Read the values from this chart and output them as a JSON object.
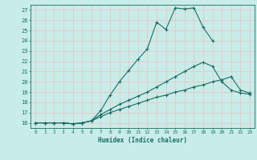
{
  "xlabel": "Humidex (Indice chaleur)",
  "xlim": [
    -0.5,
    23.5
  ],
  "ylim": [
    15.5,
    27.5
  ],
  "xticks": [
    0,
    1,
    2,
    3,
    4,
    5,
    6,
    7,
    8,
    9,
    10,
    11,
    12,
    13,
    14,
    15,
    16,
    17,
    18,
    19,
    20,
    21,
    22,
    23
  ],
  "yticks": [
    16,
    17,
    18,
    19,
    20,
    21,
    22,
    23,
    24,
    25,
    26,
    27
  ],
  "bg_color": "#c8ece8",
  "line_color": "#1a6e64",
  "grid_color": "#e8c8c8",
  "series": [
    {
      "x": [
        0,
        1,
        2,
        3,
        4,
        5,
        6,
        7,
        8,
        9,
        10,
        11,
        12,
        13,
        14,
        15,
        16,
        17,
        18,
        19
      ],
      "y": [
        16,
        16,
        16,
        16,
        15.9,
        16.0,
        16.2,
        17.2,
        18.7,
        20.0,
        21.1,
        22.2,
        23.2,
        25.8,
        25.1,
        27.2,
        27.1,
        27.2,
        25.3,
        24.0
      ]
    },
    {
      "x": [
        0,
        1,
        2,
        3,
        4,
        5,
        6,
        7,
        8,
        9,
        10,
        11,
        12,
        13,
        14,
        15,
        16,
        17,
        18,
        19,
        20,
        21,
        22,
        23
      ],
      "y": [
        16,
        16,
        16,
        16,
        15.9,
        16.0,
        16.2,
        16.8,
        17.3,
        17.8,
        18.2,
        18.6,
        19.0,
        19.5,
        20.0,
        20.5,
        21.0,
        21.5,
        21.9,
        21.5,
        20.0,
        19.2,
        18.9,
        18.8
      ]
    },
    {
      "x": [
        0,
        1,
        2,
        3,
        4,
        5,
        6,
        7,
        8,
        9,
        10,
        11,
        12,
        13,
        14,
        15,
        16,
        17,
        18,
        19,
        20,
        21,
        22,
        23
      ],
      "y": [
        16,
        16,
        16,
        16,
        15.9,
        16.0,
        16.2,
        16.6,
        17.0,
        17.3,
        17.6,
        17.9,
        18.2,
        18.5,
        18.7,
        19.0,
        19.2,
        19.5,
        19.7,
        20.0,
        20.2,
        20.5,
        19.2,
        18.9
      ]
    }
  ]
}
